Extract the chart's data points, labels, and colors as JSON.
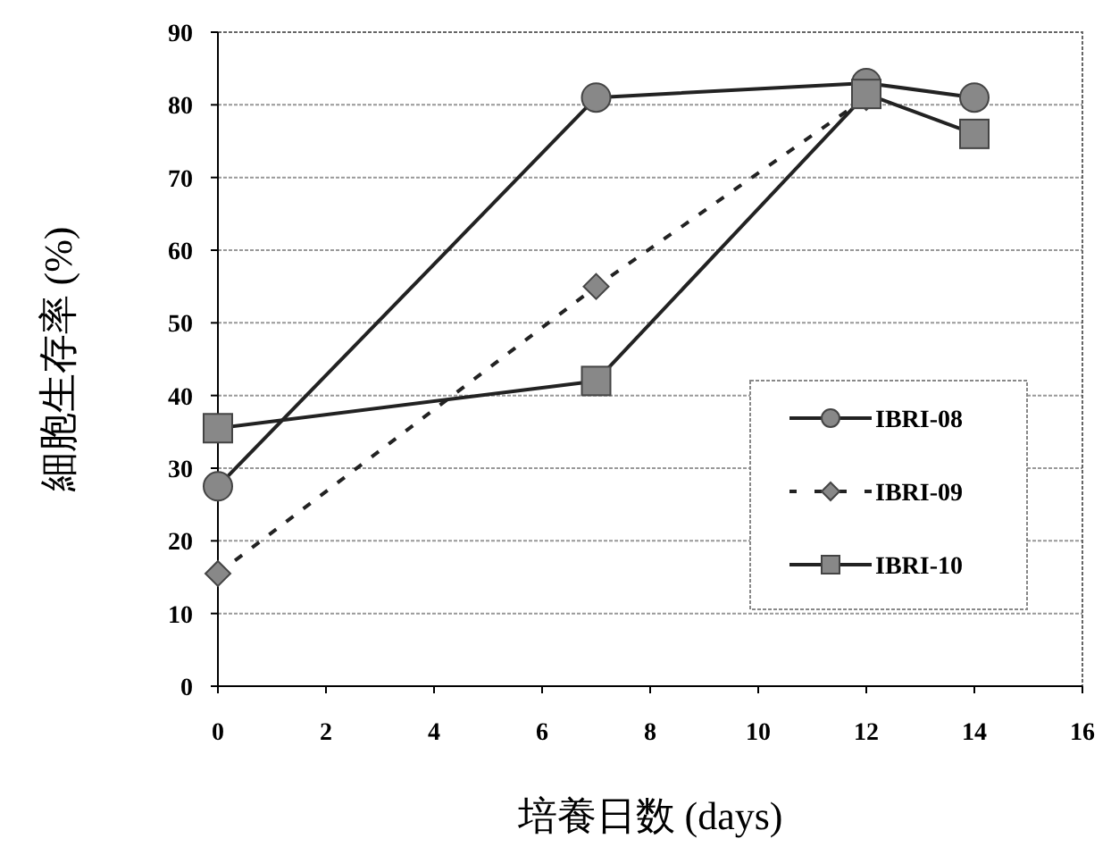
{
  "chart_data": {
    "type": "line",
    "xlabel": "培養日数 (days)",
    "ylabel": "細胞生存率 (%)",
    "xlim": [
      0,
      16
    ],
    "xticks": [
      0,
      2,
      4,
      6,
      8,
      10,
      12,
      14,
      16
    ],
    "ylim": [
      0,
      90
    ],
    "yticks": [
      0,
      10,
      20,
      30,
      40,
      50,
      60,
      70,
      80,
      90
    ],
    "grid": "y",
    "legend": "right",
    "series": [
      {
        "name": "IBRI-08",
        "color": "#888888",
        "marker": "circle",
        "line_style": "solid",
        "x": [
          0,
          7,
          12,
          14
        ],
        "values": [
          27.5,
          81,
          83,
          81
        ]
      },
      {
        "name": "IBRI-09",
        "color": "#888888",
        "marker": "diamond",
        "line_style": "dashed",
        "x": [
          0,
          7,
          12
        ],
        "values": [
          15.5,
          55,
          81
        ]
      },
      {
        "name": "IBRI-10",
        "color": "#888888",
        "marker": "square",
        "line_style": "solid",
        "x": [
          0,
          7,
          12,
          14
        ],
        "values": [
          35.5,
          42,
          81.5,
          76
        ]
      }
    ]
  }
}
